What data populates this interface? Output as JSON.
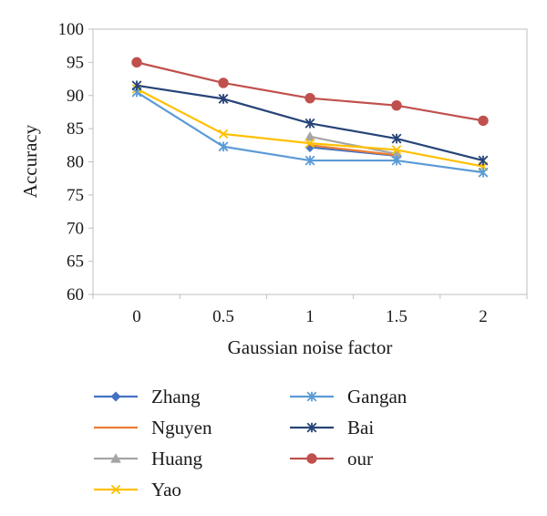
{
  "chart_data": {
    "type": "line",
    "title": "",
    "xlabel": "Gaussian noise factor",
    "ylabel": "Accuracy",
    "x": [
      0,
      0.5,
      1,
      1.5,
      2
    ],
    "x_tick_labels": [
      "0",
      "0.5",
      "1",
      "1.5",
      "2"
    ],
    "ylim": [
      60,
      100
    ],
    "y_ticks": [
      60,
      65,
      70,
      75,
      80,
      85,
      90,
      95,
      100
    ],
    "legend_position": "bottom",
    "series": [
      {
        "name": "Zhang",
        "color": "#4472c4",
        "marker": "diamond",
        "values": [
          null,
          null,
          82.2,
          80.9,
          null
        ]
      },
      {
        "name": "Nguyen",
        "color": "#ed7d31",
        "marker": "none",
        "values": [
          null,
          null,
          82.5,
          81.0,
          null
        ]
      },
      {
        "name": "Huang",
        "color": "#a5a5a5",
        "marker": "triangle",
        "values": [
          null,
          null,
          83.8,
          81.2,
          null
        ]
      },
      {
        "name": "Yao",
        "color": "#ffc000",
        "marker": "x",
        "values": [
          91.0,
          84.2,
          82.8,
          81.8,
          79.3
        ]
      },
      {
        "name": "Gangan",
        "color": "#5b9bd5",
        "marker": "asterisk",
        "values": [
          90.5,
          82.3,
          80.2,
          80.2,
          78.4
        ]
      },
      {
        "name": "Bai",
        "color": "#264478",
        "marker": "asterisk",
        "values": [
          91.5,
          89.5,
          85.8,
          83.5,
          80.2
        ]
      },
      {
        "name": "our",
        "color": "#c0504d",
        "marker": "circle",
        "values": [
          95.0,
          91.9,
          89.6,
          88.5,
          86.2
        ]
      }
    ]
  }
}
